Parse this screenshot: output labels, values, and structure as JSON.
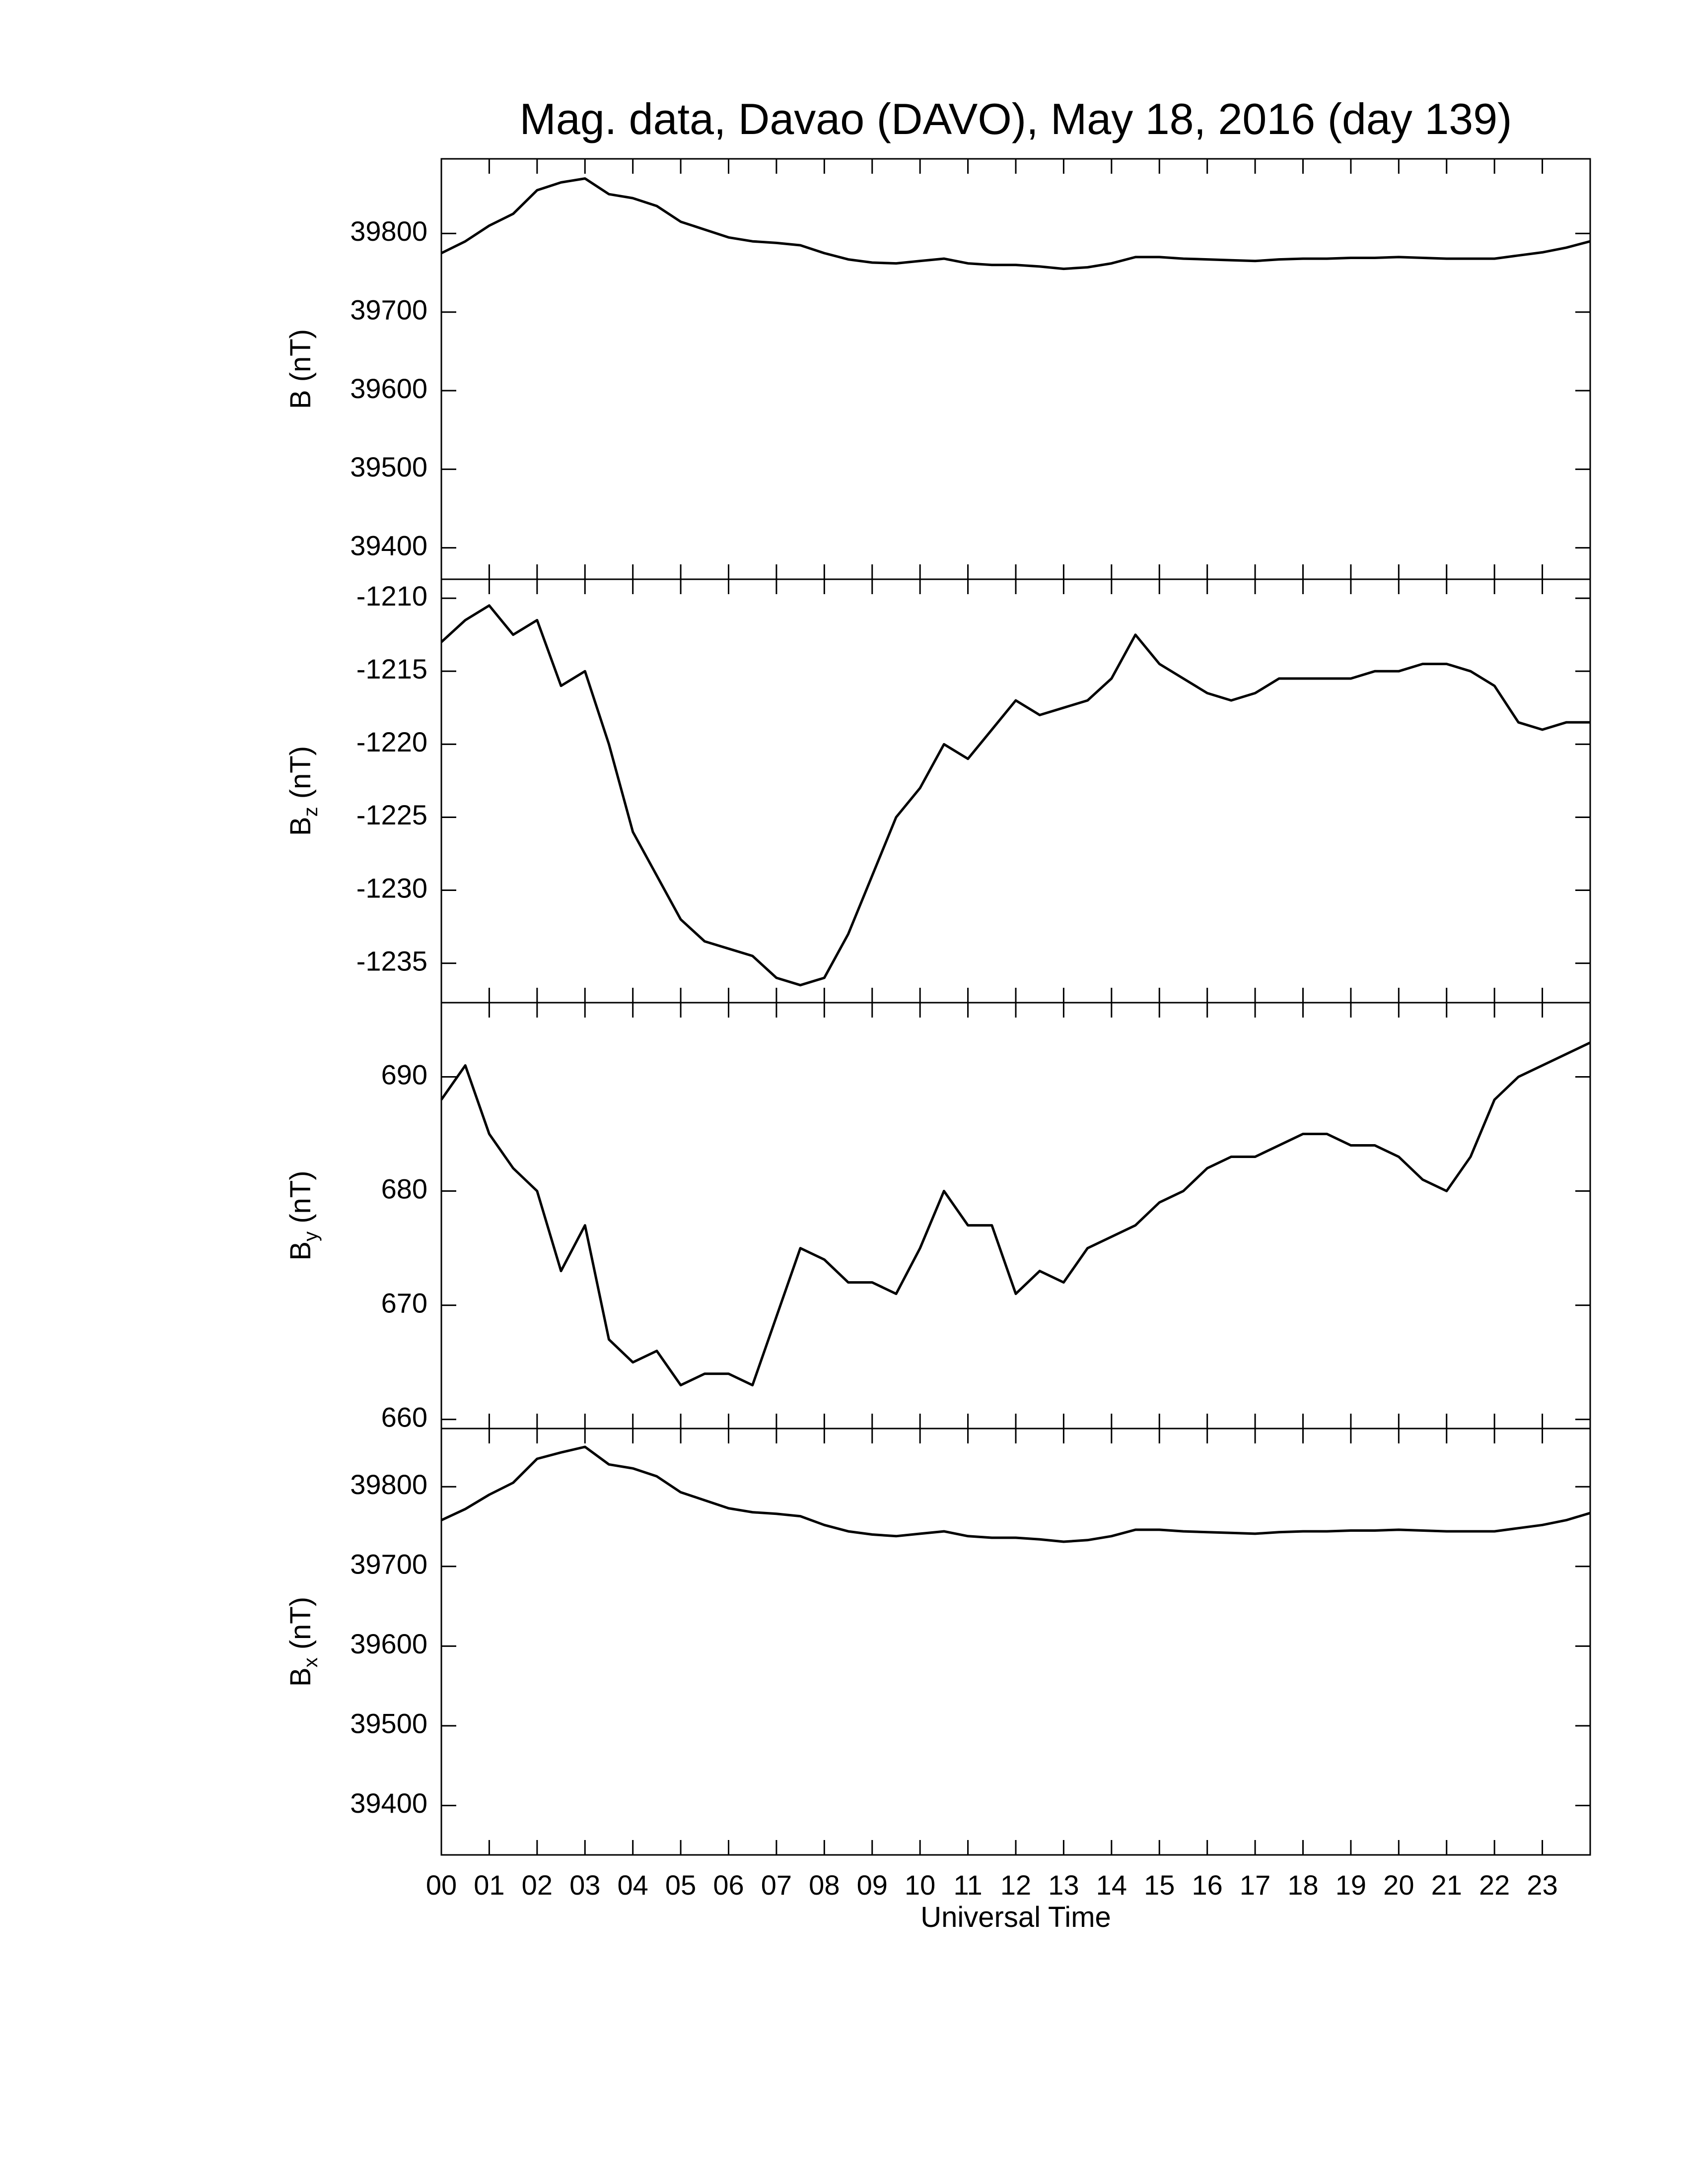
{
  "chart_data": [
    {
      "type": "line",
      "title": "Mag. data, Davao (DAVO), May 18, 2016 (day 139)",
      "ylabel": "B (nT)",
      "x": [
        0,
        0.5,
        1,
        1.5,
        2,
        2.5,
        3,
        3.5,
        4,
        4.5,
        5,
        5.5,
        6,
        6.5,
        7,
        7.5,
        8,
        8.5,
        9,
        9.5,
        10,
        10.5,
        11,
        11.5,
        12,
        12.5,
        13,
        13.5,
        14,
        14.5,
        15,
        15.5,
        16,
        16.5,
        17,
        17.5,
        18,
        18.5,
        19,
        19.5,
        20,
        20.5,
        21,
        21.5,
        22,
        22.5,
        23,
        23.5,
        24
      ],
      "values": [
        39775,
        39790,
        39810,
        39825,
        39855,
        39865,
        39870,
        39850,
        39845,
        39835,
        39815,
        39805,
        39795,
        39790,
        39788,
        39785,
        39775,
        39767,
        39763,
        39762,
        39765,
        39768,
        39762,
        39760,
        39760,
        39758,
        39755,
        39757,
        39762,
        39770,
        39770,
        39768,
        39767,
        39766,
        39765,
        39767,
        39768,
        39768,
        39769,
        39769,
        39770,
        39769,
        39768,
        39768,
        39768,
        39772,
        39776,
        39782,
        39790
      ],
      "color": "#000000",
      "xlim": [
        0,
        24
      ],
      "ylim": [
        39360,
        39895
      ],
      "yticks": [
        39400,
        39500,
        39600,
        39700,
        39800
      ]
    },
    {
      "type": "line",
      "ylabel": "Bz (nT)",
      "x": [
        0,
        0.5,
        1,
        1.5,
        2,
        2.5,
        3,
        3.5,
        4,
        4.5,
        5,
        5.5,
        6,
        6.5,
        7,
        7.5,
        8,
        8.5,
        9,
        9.5,
        10,
        10.5,
        11,
        11.5,
        12,
        12.5,
        13,
        13.5,
        14,
        14.5,
        15,
        15.5,
        16,
        16.5,
        17,
        17.5,
        18,
        18.5,
        19,
        19.5,
        20,
        20.5,
        21,
        21.5,
        22,
        22.5,
        23,
        23.5,
        24
      ],
      "values": [
        -1213,
        -1211.5,
        -1210.5,
        -1212.5,
        -1211.5,
        -1216,
        -1215,
        -1220,
        -1226,
        -1229,
        -1232,
        -1233.5,
        -1234,
        -1234.5,
        -1236,
        -1236.5,
        -1236,
        -1233,
        -1229,
        -1225,
        -1223,
        -1220,
        -1221,
        -1219,
        -1217,
        -1218,
        -1217.5,
        -1217,
        -1215.5,
        -1212.5,
        -1214.5,
        -1215.5,
        -1216.5,
        -1217,
        -1216.5,
        -1215.5,
        -1215.5,
        -1215.5,
        -1215.5,
        -1215,
        -1215,
        -1214.5,
        -1214.5,
        -1215,
        -1216,
        -1218.5,
        -1219,
        -1218.5,
        -1218.5
      ],
      "color": "#000000",
      "xlim": [
        0,
        24
      ],
      "ylim": [
        -1237.7,
        -1208.7
      ],
      "yticks": [
        -1235,
        -1230,
        -1225,
        -1220,
        -1215,
        -1210
      ]
    },
    {
      "type": "line",
      "ylabel": "By (nT)",
      "x": [
        0,
        0.5,
        1,
        1.5,
        2,
        2.5,
        3,
        3.5,
        4,
        4.5,
        5,
        5.5,
        6,
        6.5,
        7,
        7.5,
        8,
        8.5,
        9,
        9.5,
        10,
        10.5,
        11,
        11.5,
        12,
        12.5,
        13,
        13.5,
        14,
        14.5,
        15,
        15.5,
        16,
        16.5,
        17,
        17.5,
        18,
        18.5,
        19,
        19.5,
        20,
        20.5,
        21,
        21.5,
        22,
        22.5,
        23,
        23.5,
        24
      ],
      "values": [
        688,
        691,
        685,
        682,
        680,
        673,
        677,
        667,
        665,
        666,
        663,
        664,
        664,
        663,
        669,
        675,
        674,
        672,
        672,
        671,
        675,
        680,
        677,
        677,
        671,
        673,
        672,
        675,
        676,
        677,
        679,
        680,
        682,
        683,
        683,
        684,
        685,
        685,
        684,
        684,
        683,
        681,
        680,
        683,
        688,
        690,
        691,
        692,
        693
      ],
      "color": "#000000",
      "xlim": [
        0,
        24
      ],
      "ylim": [
        659.2,
        696.5
      ],
      "yticks": [
        660,
        670,
        680,
        690
      ]
    },
    {
      "type": "line",
      "ylabel": "Bx (nT)",
      "xlabel": "Universal Time",
      "x": [
        0,
        0.5,
        1,
        1.5,
        2,
        2.5,
        3,
        3.5,
        4,
        4.5,
        5,
        5.5,
        6,
        6.5,
        7,
        7.5,
        8,
        8.5,
        9,
        9.5,
        10,
        10.5,
        11,
        11.5,
        12,
        12.5,
        13,
        13.5,
        14,
        14.5,
        15,
        15.5,
        16,
        16.5,
        17,
        17.5,
        18,
        18.5,
        19,
        19.5,
        20,
        20.5,
        21,
        21.5,
        22,
        22.5,
        23,
        23.5,
        24
      ],
      "values": [
        39758,
        39772,
        39790,
        39805,
        39835,
        39843,
        39850,
        39828,
        39823,
        39813,
        39793,
        39783,
        39773,
        39768,
        39766,
        39763,
        39752,
        39744,
        39740,
        39738,
        39741,
        39744,
        39738,
        39736,
        39736,
        39734,
        39731,
        39733,
        39738,
        39746,
        39746,
        39744,
        39743,
        39742,
        39741,
        39743,
        39744,
        39744,
        39745,
        39745,
        39746,
        39745,
        39744,
        39744,
        39744,
        39748,
        39752,
        39758,
        39767
      ],
      "color": "#000000",
      "xlim": [
        0,
        24
      ],
      "ylim": [
        39338,
        39873
      ],
      "yticks": [
        39400,
        39500,
        39600,
        39700,
        39800
      ],
      "xticks": [
        {
          "value": 0,
          "label": "00"
        },
        {
          "value": 1,
          "label": "01"
        },
        {
          "value": 2,
          "label": "02"
        },
        {
          "value": 3,
          "label": "03"
        },
        {
          "value": 4,
          "label": "04"
        },
        {
          "value": 5,
          "label": "05"
        },
        {
          "value": 6,
          "label": "06"
        },
        {
          "value": 7,
          "label": "07"
        },
        {
          "value": 8,
          "label": "08"
        },
        {
          "value": 9,
          "label": "09"
        },
        {
          "value": 10,
          "label": "10"
        },
        {
          "value": 11,
          "label": "11"
        },
        {
          "value": 12,
          "label": "12"
        },
        {
          "value": 13,
          "label": "13"
        },
        {
          "value": 14,
          "label": "14"
        },
        {
          "value": 15,
          "label": "15"
        },
        {
          "value": 16,
          "label": "16"
        },
        {
          "value": 17,
          "label": "17"
        },
        {
          "value": 18,
          "label": "18"
        },
        {
          "value": 19,
          "label": "19"
        },
        {
          "value": 20,
          "label": "20"
        },
        {
          "value": 21,
          "label": "21"
        },
        {
          "value": 22,
          "label": "22"
        },
        {
          "value": 23,
          "label": "23"
        }
      ]
    }
  ]
}
